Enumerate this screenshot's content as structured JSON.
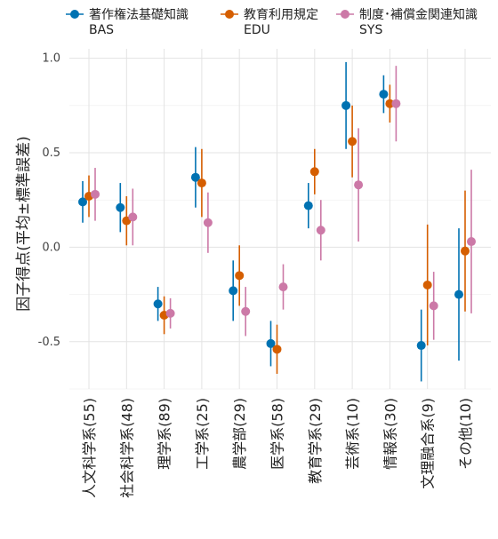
{
  "chart_data": {
    "type": "scatter",
    "ylabel": "因子得点(平均±標準誤差)",
    "xlabel": "",
    "ylim": [
      -0.75,
      1.05
    ],
    "yticks": [
      -0.5,
      0.0,
      0.5,
      1.0
    ],
    "ytick_labels": [
      "-0.5",
      "0.0",
      "0.5",
      "1.0"
    ],
    "grid": true,
    "legend_position": "top",
    "categories": [
      "人文科学系(55)",
      "社会科学系(48)",
      "理学系(89)",
      "工学系(25)",
      "農学部(29)",
      "医学系(58)",
      "教育学系(29)",
      "芸術系(10)",
      "情報系(30)",
      "文理融合系(9)",
      "その他(10)"
    ],
    "series": [
      {
        "name": "著作権法基礎知識",
        "name_line2": "BAS",
        "color": "#0072B2",
        "values": [
          0.24,
          0.21,
          -0.3,
          0.37,
          -0.23,
          -0.51,
          0.22,
          0.75,
          0.81,
          -0.52,
          -0.25
        ],
        "errors": [
          0.11,
          0.13,
          0.09,
          0.16,
          0.16,
          0.12,
          0.12,
          0.23,
          0.1,
          0.19,
          0.35
        ]
      },
      {
        "name": "教育利用規定",
        "name_line2": "EDU",
        "color": "#D55E00",
        "values": [
          0.27,
          0.14,
          -0.36,
          0.34,
          -0.15,
          -0.54,
          0.4,
          0.56,
          0.76,
          -0.2,
          -0.02
        ],
        "errors": [
          0.11,
          0.13,
          0.1,
          0.18,
          0.16,
          0.13,
          0.12,
          0.19,
          0.1,
          0.32,
          0.32
        ]
      },
      {
        "name": "制度･補償金関連知識",
        "name_line2": "SYS",
        "color": "#CC79A7",
        "values": [
          0.28,
          0.16,
          -0.35,
          0.13,
          -0.34,
          -0.21,
          0.09,
          0.33,
          0.76,
          -0.31,
          0.03
        ],
        "errors": [
          0.14,
          0.15,
          0.08,
          0.16,
          0.13,
          0.12,
          0.16,
          0.3,
          0.2,
          0.18,
          0.38
        ]
      }
    ]
  }
}
